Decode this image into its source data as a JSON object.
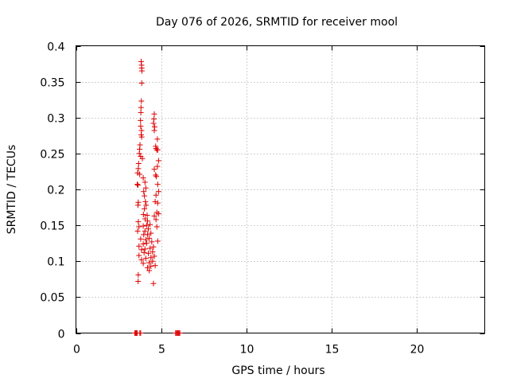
{
  "chart_data": {
    "type": "scatter",
    "title": "Day 076 of 2026, SRMTID for receiver mool",
    "xlabel": "GPS time / hours",
    "ylabel": "SRMTID / TECUs",
    "xlim": [
      0,
      24
    ],
    "ylim": [
      0,
      0.4
    ],
    "grid": true,
    "xticks": [
      0,
      5,
      10,
      15,
      20
    ],
    "xtick_labels": [
      "0",
      "5",
      "10",
      "15",
      "20"
    ],
    "yticks": [
      0,
      0.05,
      0.1,
      0.15,
      0.2,
      0.25,
      0.3,
      0.35,
      0.4
    ],
    "ytick_labels": [
      "0",
      "0.05",
      "0.1",
      "0.15",
      "0.2",
      "0.25",
      "0.3",
      "0.35",
      "0.4"
    ],
    "marker": "plus",
    "color": "#dd0000",
    "series": [
      {
        "name": "SRMTID",
        "points": [
          [
            3.45,
            0
          ],
          [
            3.5,
            0
          ],
          [
            3.55,
            0
          ],
          [
            3.6,
            0
          ],
          [
            3.75,
            0
          ],
          [
            3.8,
            0
          ],
          [
            5.85,
            0
          ],
          [
            5.9,
            0
          ],
          [
            5.95,
            0
          ],
          [
            6.0,
            0
          ],
          [
            6.05,
            0
          ],
          [
            6.1,
            0
          ],
          [
            3.83,
            0.378
          ],
          [
            3.85,
            0.373
          ],
          [
            3.86,
            0.369
          ],
          [
            3.87,
            0.365
          ],
          [
            3.86,
            0.348
          ],
          [
            3.84,
            0.323
          ],
          [
            3.82,
            0.314
          ],
          [
            3.81,
            0.307
          ],
          [
            3.79,
            0.296
          ],
          [
            3.8,
            0.288
          ],
          [
            3.85,
            0.282
          ],
          [
            3.83,
            0.276
          ],
          [
            3.86,
            0.273
          ],
          [
            3.76,
            0.262
          ],
          [
            3.74,
            0.256
          ],
          [
            3.72,
            0.25
          ],
          [
            3.8,
            0.246
          ],
          [
            3.9,
            0.243
          ],
          [
            3.68,
            0.236
          ],
          [
            3.66,
            0.229
          ],
          [
            3.62,
            0.223
          ],
          [
            3.74,
            0.221
          ],
          [
            3.95,
            0.216
          ],
          [
            3.6,
            0.207
          ],
          [
            3.64,
            0.206
          ],
          [
            4.05,
            0.21
          ],
          [
            4.1,
            0.202
          ],
          [
            3.98,
            0.197
          ],
          [
            4.02,
            0.191
          ],
          [
            3.66,
            0.182
          ],
          [
            3.64,
            0.178
          ],
          [
            4.08,
            0.183
          ],
          [
            4.12,
            0.178
          ],
          [
            4.02,
            0.173
          ],
          [
            3.96,
            0.165
          ],
          [
            4.18,
            0.164
          ],
          [
            4.06,
            0.159
          ],
          [
            3.66,
            0.155
          ],
          [
            4.2,
            0.156
          ],
          [
            3.7,
            0.148
          ],
          [
            3.95,
            0.149
          ],
          [
            4.15,
            0.15
          ],
          [
            4.35,
            0.151
          ],
          [
            3.62,
            0.142
          ],
          [
            4.05,
            0.142
          ],
          [
            4.25,
            0.145
          ],
          [
            3.98,
            0.137
          ],
          [
            4.2,
            0.137
          ],
          [
            4.4,
            0.139
          ],
          [
            3.8,
            0.131
          ],
          [
            4.1,
            0.13
          ],
          [
            4.3,
            0.132
          ],
          [
            3.7,
            0.121
          ],
          [
            3.95,
            0.124
          ],
          [
            4.15,
            0.125
          ],
          [
            4.45,
            0.127
          ],
          [
            3.85,
            0.116
          ],
          [
            4.05,
            0.117
          ],
          [
            4.35,
            0.118
          ],
          [
            4.55,
            0.12
          ],
          [
            3.7,
            0.108
          ],
          [
            4.0,
            0.112
          ],
          [
            4.25,
            0.111
          ],
          [
            4.5,
            0.113
          ],
          [
            3.85,
            0.102
          ],
          [
            4.1,
            0.104
          ],
          [
            4.4,
            0.105
          ],
          [
            4.6,
            0.107
          ],
          [
            3.95,
            0.097
          ],
          [
            4.3,
            0.098
          ],
          [
            4.5,
            0.1
          ],
          [
            4.2,
            0.091
          ],
          [
            4.4,
            0.093
          ],
          [
            4.65,
            0.094
          ],
          [
            4.3,
            0.087
          ],
          [
            3.66,
            0.081
          ],
          [
            3.65,
            0.072
          ],
          [
            4.55,
            0.069
          ],
          [
            4.6,
            0.305
          ],
          [
            4.58,
            0.298
          ],
          [
            4.55,
            0.292
          ],
          [
            4.62,
            0.287
          ],
          [
            4.6,
            0.282
          ],
          [
            4.78,
            0.27
          ],
          [
            4.68,
            0.26
          ],
          [
            4.7,
            0.257
          ],
          [
            4.75,
            0.255
          ],
          [
            4.8,
            0.255
          ],
          [
            4.85,
            0.24
          ],
          [
            4.78,
            0.232
          ],
          [
            4.6,
            0.228
          ],
          [
            4.68,
            0.22
          ],
          [
            4.72,
            0.218
          ],
          [
            4.8,
            0.207
          ],
          [
            4.85,
            0.197
          ],
          [
            4.7,
            0.192
          ],
          [
            4.65,
            0.183
          ],
          [
            4.8,
            0.181
          ],
          [
            4.75,
            0.168
          ],
          [
            4.85,
            0.166
          ],
          [
            4.6,
            0.163
          ],
          [
            4.7,
            0.158
          ],
          [
            4.75,
            0.148
          ],
          [
            4.8,
            0.128
          ]
        ]
      }
    ]
  }
}
